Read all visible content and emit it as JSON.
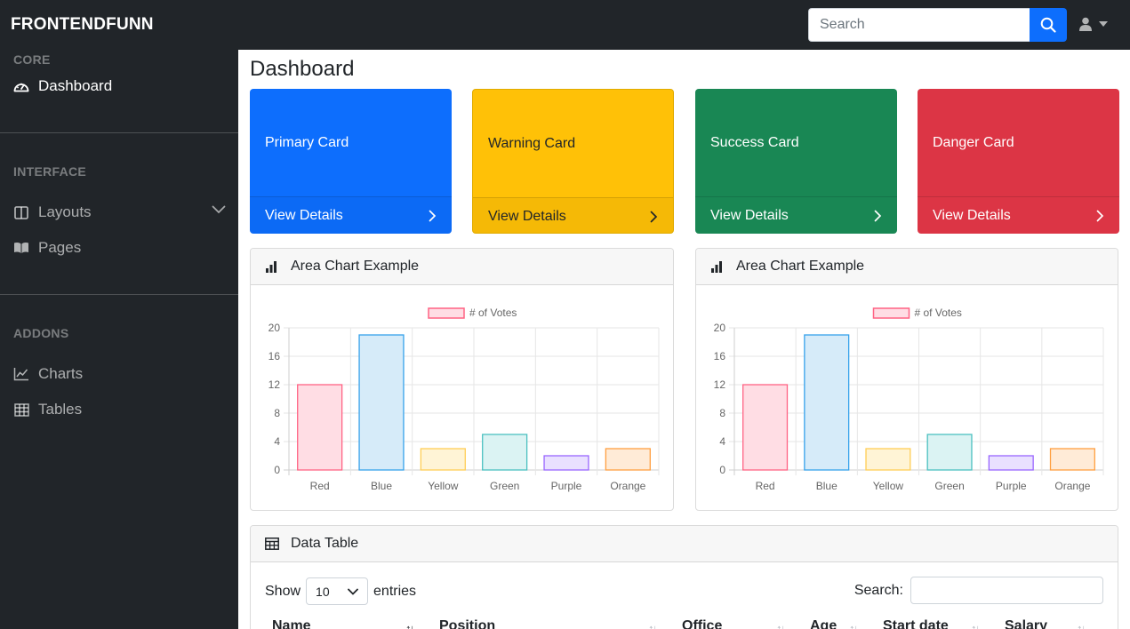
{
  "brand": "FRONTENDFUNN",
  "search": {
    "placeholder": "Search"
  },
  "sidebar": {
    "sections": [
      {
        "heading": "Core"
      },
      {
        "heading": "Interface"
      },
      {
        "heading": "Addons"
      }
    ],
    "items": [
      {
        "label": "Dashboard",
        "icon": "tachometer-icon"
      },
      {
        "label": "Layouts",
        "icon": "columns-icon"
      },
      {
        "label": "Pages",
        "icon": "book-open-icon"
      },
      {
        "label": "Charts",
        "icon": "chart-line-icon"
      },
      {
        "label": "Tables",
        "icon": "table-icon"
      }
    ]
  },
  "main": {
    "title": "Dashboard",
    "cards": [
      {
        "label": "Primary Card",
        "link": "View Details",
        "color": "#0d6efd"
      },
      {
        "label": "Warning Card",
        "link": "View Details",
        "color": "#ffc107"
      },
      {
        "label": "Success Card",
        "link": "View Details",
        "color": "#198754"
      },
      {
        "label": "Danger Card",
        "link": "View Details",
        "color": "#dc3545"
      }
    ],
    "chart_panels": [
      {
        "title": "Area Chart Example"
      },
      {
        "title": "Area Chart Example"
      }
    ],
    "table": {
      "title": "Data Table",
      "show_label": "Show",
      "entries_value": "10",
      "entries_label": "entries",
      "search_label": "Search:",
      "columns": [
        "Name",
        "Position",
        "Office",
        "Age",
        "Start date",
        "Salary"
      ]
    }
  },
  "chart_data": [
    {
      "type": "bar",
      "title": "",
      "categories": [
        "Red",
        "Blue",
        "Yellow",
        "Green",
        "Purple",
        "Orange"
      ],
      "series": [
        {
          "name": "# of Votes",
          "values": [
            12,
            19,
            3,
            5,
            2,
            3
          ]
        }
      ],
      "fill_colors": [
        "#ffdde4",
        "#d6ebf9",
        "#fff4d6",
        "#dbf3f3",
        "#e9e0ff",
        "#ffebd7"
      ],
      "stroke_colors": [
        "#ff6384",
        "#36a2eb",
        "#ffce56",
        "#4bc0c0",
        "#9966ff",
        "#ff9f40"
      ],
      "ylim": [
        0,
        20
      ],
      "yticks": [
        0,
        4,
        8,
        12,
        16,
        20
      ],
      "grid": true,
      "legend": "top"
    },
    {
      "type": "bar",
      "title": "",
      "categories": [
        "Red",
        "Blue",
        "Yellow",
        "Green",
        "Purple",
        "Orange"
      ],
      "series": [
        {
          "name": "# of Votes",
          "values": [
            12,
            19,
            3,
            5,
            2,
            3
          ]
        }
      ],
      "fill_colors": [
        "#ffdde4",
        "#d6ebf9",
        "#fff4d6",
        "#dbf3f3",
        "#e9e0ff",
        "#ffebd7"
      ],
      "stroke_colors": [
        "#ff6384",
        "#36a2eb",
        "#ffce56",
        "#4bc0c0",
        "#9966ff",
        "#ff9f40"
      ],
      "ylim": [
        0,
        20
      ],
      "yticks": [
        0,
        4,
        8,
        12,
        16,
        20
      ],
      "grid": true,
      "legend": "top"
    }
  ]
}
